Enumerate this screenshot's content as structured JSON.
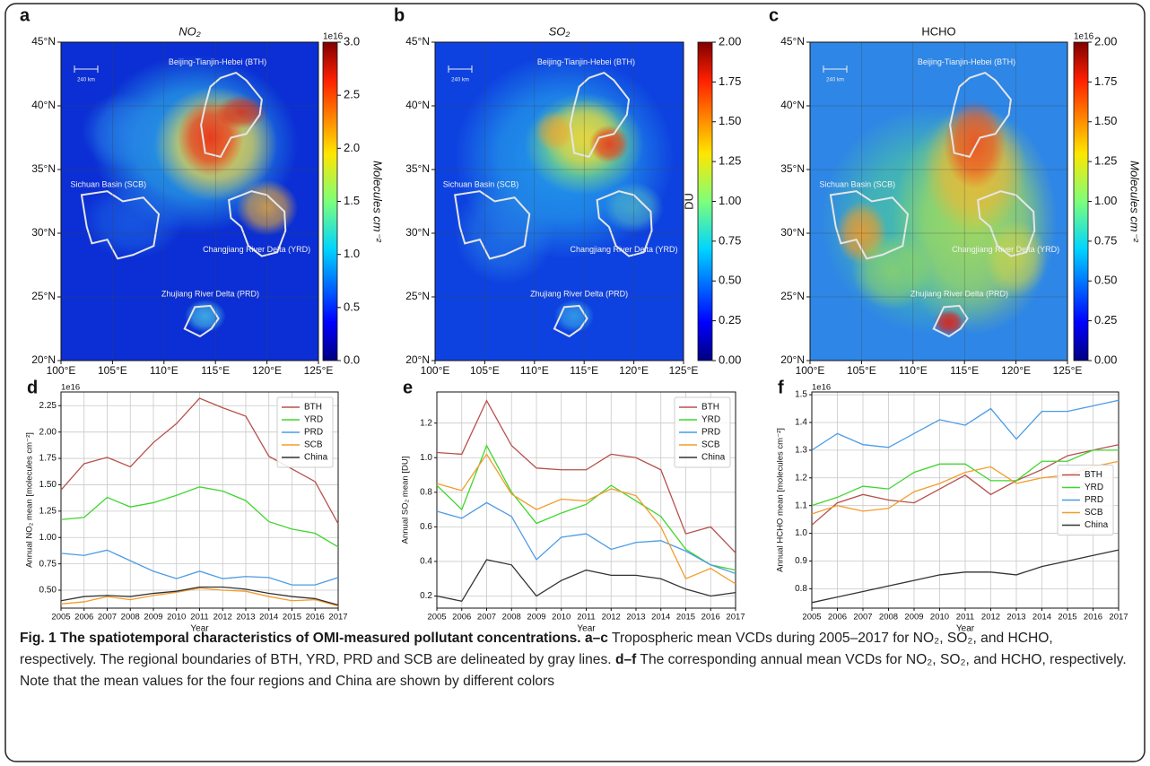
{
  "chart_data": [
    {
      "type": "map",
      "panel": "a",
      "title": "NO₂",
      "xlim": [
        100,
        125
      ],
      "ylim": [
        20,
        45
      ],
      "xticks": [
        {
          "value": 100,
          "label": "100°E"
        },
        {
          "value": 105,
          "label": "105°E"
        },
        {
          "value": 110,
          "label": "110°E"
        },
        {
          "value": 115,
          "label": "115°E"
        },
        {
          "value": 120,
          "label": "120°E"
        },
        {
          "value": 125,
          "label": "125°E"
        }
      ],
      "yticks": [
        {
          "value": 20,
          "label": "20°N"
        },
        {
          "value": 25,
          "label": "25°N"
        },
        {
          "value": 30,
          "label": "30°N"
        },
        {
          "value": 35,
          "label": "35°N"
        },
        {
          "value": 40,
          "label": "40°N"
        },
        {
          "value": 45,
          "label": "45°N"
        }
      ],
      "scale_bar": "240 km",
      "annotations": [
        "Beijing-Tianjin-Hebei (BTH)",
        "Sichuan Basin (SCB)",
        "Changjiang River Delta (YRD)",
        "Zhujiang River Delta (PRD)"
      ],
      "colorbar": {
        "label": "Molecules cm⁻²",
        "offset": "1e16",
        "lim": [
          0,
          3
        ],
        "ticks": [
          {
            "value": 0,
            "label": "0.0"
          },
          0.5,
          {
            "value": 1,
            "label": "1.0"
          },
          1.5,
          {
            "value": 2,
            "label": "2.0"
          },
          2.5,
          {
            "value": 3,
            "label": "3.0"
          }
        ]
      }
    },
    {
      "type": "map",
      "panel": "b",
      "title": "SO₂",
      "xlim": [
        100,
        125
      ],
      "ylim": [
        20,
        45
      ],
      "xticks": [
        {
          "value": 100,
          "label": "100°E"
        },
        {
          "value": 105,
          "label": "105°E"
        },
        {
          "value": 110,
          "label": "110°E"
        },
        {
          "value": 115,
          "label": "115°E"
        },
        {
          "value": 120,
          "label": "120°E"
        },
        {
          "value": 125,
          "label": "125°E"
        }
      ],
      "yticks": [
        {
          "value": 20,
          "label": "20°N"
        },
        {
          "value": 25,
          "label": "25°N"
        },
        {
          "value": 30,
          "label": "30°N"
        },
        {
          "value": 35,
          "label": "35°N"
        },
        {
          "value": 40,
          "label": "40°N"
        },
        {
          "value": 45,
          "label": "45°N"
        }
      ],
      "scale_bar": "240 km",
      "annotations": [
        "Beijing-Tianjin-Hebei (BTH)",
        "Sichuan Basin (SCB)",
        "Changjiang River Delta (YRD)",
        "Zhujiang River Delta (PRD)"
      ],
      "colorbar": {
        "label": "DU",
        "lim": [
          0,
          2
        ],
        "ticks": [
          {
            "value": 0,
            "label": "0.00"
          },
          {
            "value": 0.25,
            "label": "0.25"
          },
          {
            "value": 0.5,
            "label": "0.50"
          },
          {
            "value": 0.75,
            "label": "0.75"
          },
          {
            "value": 1,
            "label": "1.00"
          },
          {
            "value": 1.25,
            "label": "1.25"
          },
          {
            "value": 1.5,
            "label": "1.50"
          },
          {
            "value": 1.75,
            "label": "1.75"
          },
          {
            "value": 2,
            "label": "2.00"
          }
        ]
      }
    },
    {
      "type": "map",
      "panel": "c",
      "title": "HCHO",
      "xlim": [
        100,
        125
      ],
      "ylim": [
        20,
        45
      ],
      "xticks": [
        {
          "value": 100,
          "label": "100°E"
        },
        {
          "value": 105,
          "label": "105°E"
        },
        {
          "value": 110,
          "label": "110°E"
        },
        {
          "value": 115,
          "label": "115°E"
        },
        {
          "value": 120,
          "label": "120°E"
        },
        {
          "value": 125,
          "label": "125°E"
        }
      ],
      "yticks": [
        {
          "value": 20,
          "label": "20°N"
        },
        {
          "value": 25,
          "label": "25°N"
        },
        {
          "value": 30,
          "label": "30°N"
        },
        {
          "value": 35,
          "label": "35°N"
        },
        {
          "value": 40,
          "label": "40°N"
        },
        {
          "value": 45,
          "label": "45°N"
        }
      ],
      "scale_bar": "240 km",
      "annotations": [
        "Beijing-Tianjin-Hebei (BTH)",
        "Sichuan Basin (SCB)",
        "Changjiang River Delta (YRD)",
        "Zhujiang River Delta (PRD)"
      ],
      "colorbar": {
        "label": "Molecules cm⁻²",
        "offset": "1e16",
        "lim": [
          0,
          2
        ],
        "ticks": [
          {
            "value": 0,
            "label": "0.00"
          },
          {
            "value": 0.25,
            "label": "0.25"
          },
          {
            "value": 0.5,
            "label": "0.50"
          },
          {
            "value": 0.75,
            "label": "0.75"
          },
          {
            "value": 1,
            "label": "1.00"
          },
          {
            "value": 1.25,
            "label": "1.25"
          },
          {
            "value": 1.5,
            "label": "1.50"
          },
          {
            "value": 1.75,
            "label": "1.75"
          },
          {
            "value": 2,
            "label": "2.00"
          }
        ]
      }
    },
    {
      "type": "line",
      "panel": "d",
      "xlabel": "Year",
      "ylabel": "Annual NO₂ mean [molecules cm⁻²]",
      "offset": "1e16",
      "x": [
        2005,
        2006,
        2007,
        2008,
        2009,
        2010,
        2011,
        2012,
        2013,
        2014,
        2015,
        2016,
        2017
      ],
      "xlim": [
        2005,
        2017
      ],
      "xticks": [
        2005,
        2006,
        2007,
        2008,
        2009,
        2010,
        2011,
        2012,
        2013,
        2014,
        2015,
        2016,
        2017
      ],
      "ylim": [
        0.33,
        2.38
      ],
      "yticks": [
        {
          "value": 0.5,
          "label": "0.50"
        },
        0.75,
        {
          "value": 1,
          "label": "1.00"
        },
        1.25,
        {
          "value": 1.5,
          "label": "1.50"
        },
        1.75,
        {
          "value": 2,
          "label": "2.00"
        },
        2.25
      ],
      "grid": true,
      "legend": "upper right",
      "series": [
        {
          "name": "BTH",
          "color": "#b8504b",
          "values": [
            1.45,
            1.7,
            1.76,
            1.67,
            1.9,
            2.08,
            2.32,
            2.23,
            2.15,
            1.77,
            1.65,
            1.53,
            1.13
          ]
        },
        {
          "name": "YRD",
          "color": "#3fd62e",
          "values": [
            1.17,
            1.19,
            1.38,
            1.29,
            1.33,
            1.4,
            1.48,
            1.44,
            1.35,
            1.15,
            1.08,
            1.04,
            0.91
          ]
        },
        {
          "name": "PRD",
          "color": "#4b9be6",
          "values": [
            0.85,
            0.83,
            0.88,
            0.78,
            0.68,
            0.61,
            0.68,
            0.61,
            0.63,
            0.62,
            0.55,
            0.55,
            0.62
          ]
        },
        {
          "name": "SCB",
          "color": "#f39c2c",
          "values": [
            0.37,
            0.39,
            0.44,
            0.41,
            0.45,
            0.48,
            0.52,
            0.5,
            0.49,
            0.44,
            0.4,
            0.41,
            0.35
          ]
        },
        {
          "name": "China",
          "color": "#333333",
          "values": [
            0.4,
            0.44,
            0.45,
            0.44,
            0.47,
            0.49,
            0.53,
            0.53,
            0.51,
            0.47,
            0.44,
            0.42,
            0.36
          ]
        }
      ]
    },
    {
      "type": "line",
      "panel": "e",
      "xlabel": "Year",
      "ylabel": "Annual SO₂ mean [DU]",
      "x": [
        2005,
        2006,
        2007,
        2008,
        2009,
        2010,
        2011,
        2012,
        2013,
        2014,
        2015,
        2016,
        2017
      ],
      "xlim": [
        2005,
        2017
      ],
      "xticks": [
        2005,
        2006,
        2007,
        2008,
        2009,
        2010,
        2011,
        2012,
        2013,
        2014,
        2015,
        2016,
        2017
      ],
      "ylim": [
        0.13,
        1.38
      ],
      "yticks": [
        0.2,
        0.4,
        0.6,
        0.8,
        {
          "value": 1,
          "label": "1.0"
        },
        1.2
      ],
      "grid": true,
      "legend": "upper right",
      "series": [
        {
          "name": "BTH",
          "color": "#b8504b",
          "values": [
            1.03,
            1.02,
            1.33,
            1.07,
            0.94,
            0.93,
            0.93,
            1.02,
            1.0,
            0.93,
            0.56,
            0.6,
            0.45
          ]
        },
        {
          "name": "YRD",
          "color": "#3fd62e",
          "values": [
            0.84,
            0.7,
            1.07,
            0.8,
            0.62,
            0.68,
            0.73,
            0.84,
            0.75,
            0.66,
            0.47,
            0.38,
            0.35
          ]
        },
        {
          "name": "PRD",
          "color": "#4b9be6",
          "values": [
            0.69,
            0.65,
            0.74,
            0.66,
            0.41,
            0.54,
            0.56,
            0.47,
            0.51,
            0.52,
            0.46,
            0.38,
            0.33
          ]
        },
        {
          "name": "SCB",
          "color": "#f39c2c",
          "values": [
            0.85,
            0.81,
            1.02,
            0.79,
            0.7,
            0.76,
            0.75,
            0.82,
            0.78,
            0.6,
            0.3,
            0.36,
            0.27
          ]
        },
        {
          "name": "China",
          "color": "#333333",
          "values": [
            0.2,
            0.17,
            0.41,
            0.38,
            0.2,
            0.29,
            0.35,
            0.32,
            0.32,
            0.3,
            0.24,
            0.2,
            0.22
          ]
        }
      ]
    },
    {
      "type": "line",
      "panel": "f",
      "xlabel": "Year",
      "ylabel": "Annual HCHO mean [molecules cm⁻²]",
      "offset": "1e16",
      "x": [
        2005,
        2006,
        2007,
        2008,
        2009,
        2010,
        2011,
        2012,
        2013,
        2014,
        2015,
        2016,
        2017
      ],
      "xlim": [
        2005,
        2017
      ],
      "xticks": [
        2005,
        2006,
        2007,
        2008,
        2009,
        2010,
        2011,
        2012,
        2013,
        2014,
        2015,
        2016,
        2017
      ],
      "ylim": [
        0.73,
        1.51
      ],
      "yticks": [
        0.8,
        0.9,
        {
          "value": 1,
          "label": "1.0"
        },
        1.1,
        1.2,
        1.3,
        1.4,
        1.5
      ],
      "grid": true,
      "legend": "center right",
      "series": [
        {
          "name": "BTH",
          "color": "#b8504b",
          "values": [
            1.03,
            1.11,
            1.14,
            1.12,
            1.11,
            1.16,
            1.21,
            1.14,
            1.19,
            1.23,
            1.28,
            1.3,
            1.32
          ]
        },
        {
          "name": "YRD",
          "color": "#3fd62e",
          "values": [
            1.1,
            1.13,
            1.17,
            1.16,
            1.22,
            1.25,
            1.25,
            1.19,
            1.19,
            1.26,
            1.26,
            1.3,
            1.3
          ]
        },
        {
          "name": "PRD",
          "color": "#4b9be6",
          "values": [
            1.3,
            1.36,
            1.32,
            1.31,
            1.36,
            1.41,
            1.39,
            1.45,
            1.34,
            1.44,
            1.44,
            1.46,
            1.48
          ]
        },
        {
          "name": "SCB",
          "color": "#f39c2c",
          "values": [
            1.07,
            1.1,
            1.08,
            1.09,
            1.15,
            1.18,
            1.22,
            1.24,
            1.18,
            1.2,
            1.21,
            1.24,
            1.26
          ]
        },
        {
          "name": "China",
          "color": "#333333",
          "values": [
            0.75,
            0.77,
            0.79,
            0.81,
            0.83,
            0.85,
            0.86,
            0.86,
            0.85,
            0.88,
            0.9,
            0.92,
            0.94
          ]
        }
      ]
    }
  ],
  "caption": [
    "Fig. 1 The spatiotemporal characteristics of OMI-measured pollutant concentrations.",
    "a–c",
    "Tropospheric mean VCDs during 2005–2017 for NO₂, SO₂, and HCHO, respectively. The regional boundaries of BTH, YRD, PRD and SCB are delineated by gray lines.",
    "d–f",
    "The corresponding annual mean VCDs for NO₂, SO₂, and HCHO, respectively. Note that the mean values for the four regions and China are shown by different colors"
  ]
}
